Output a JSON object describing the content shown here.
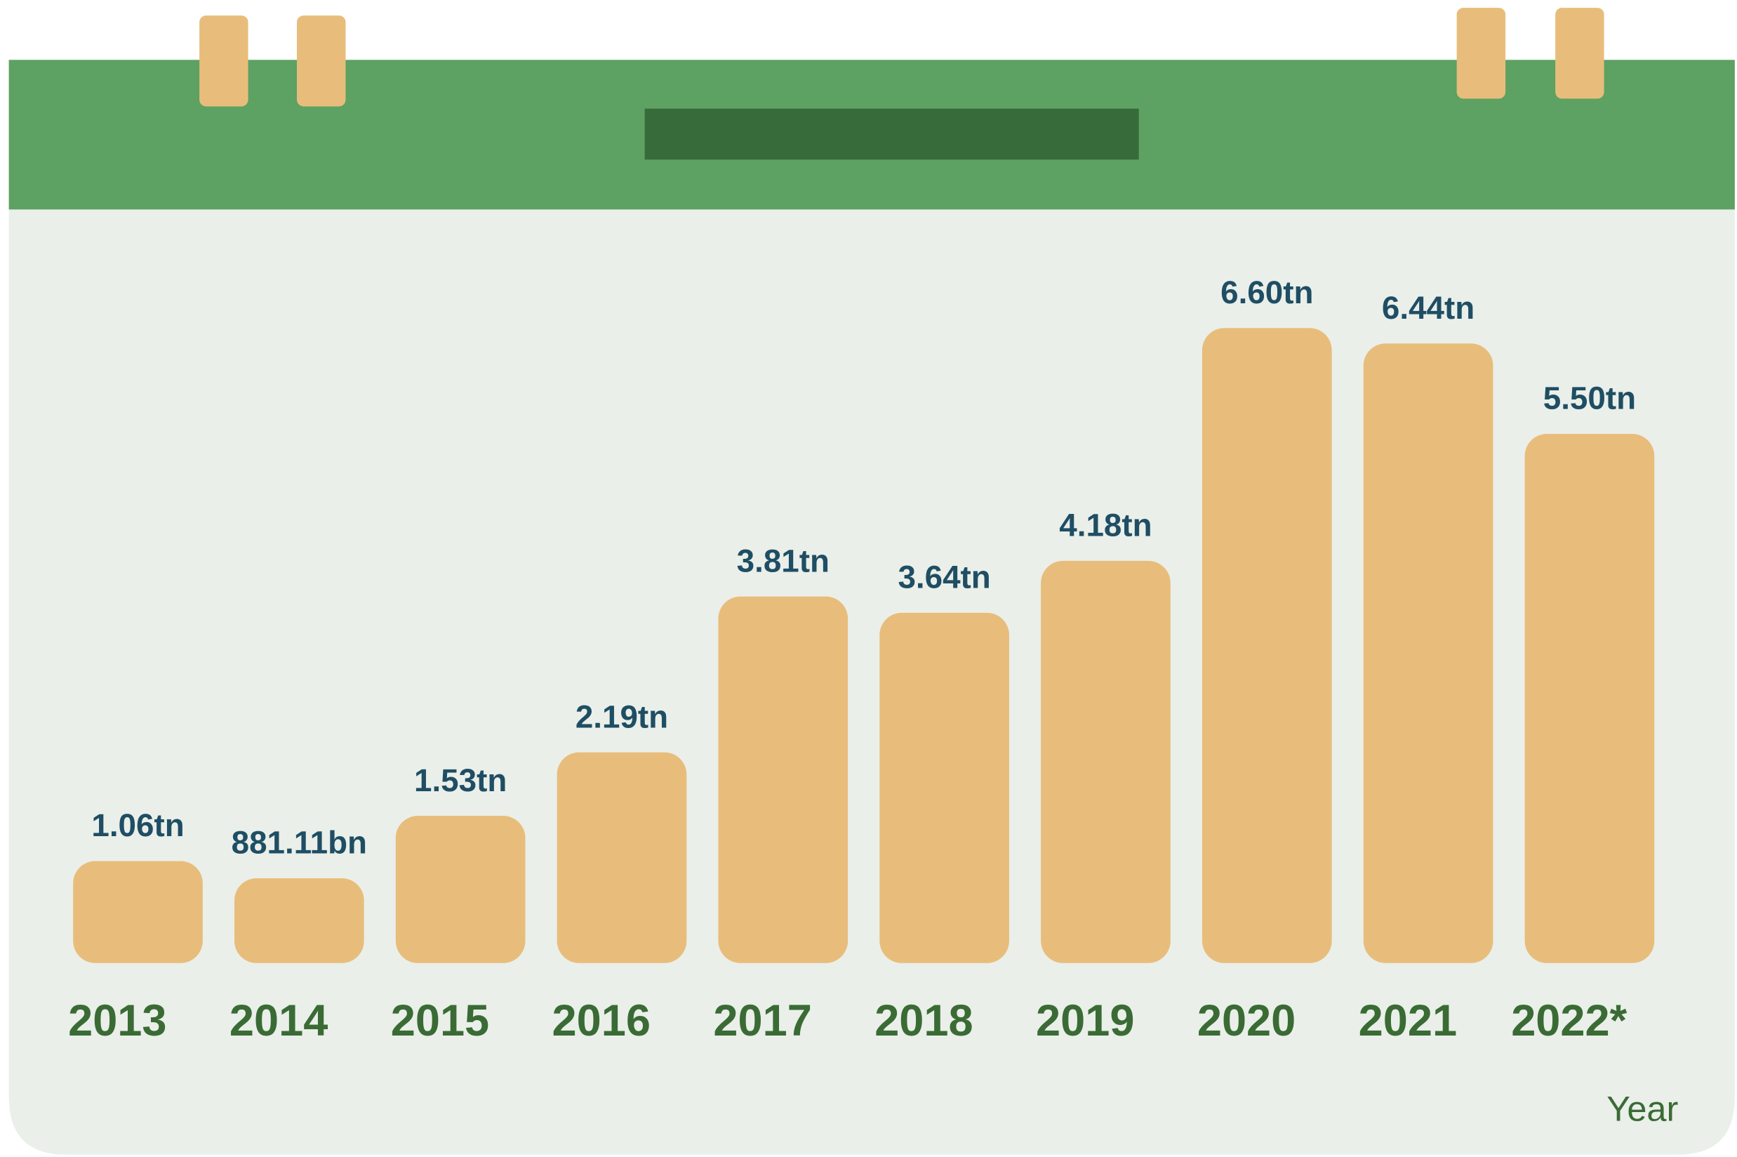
{
  "chart_data": {
    "type": "bar",
    "categories": [
      "2013",
      "2014",
      "2015",
      "2016",
      "2017",
      "2018",
      "2019",
      "2020",
      "2021",
      "2022*"
    ],
    "values": [
      1.06,
      0.88111,
      1.53,
      2.19,
      3.81,
      3.64,
      4.18,
      6.6,
      6.44,
      5.5
    ],
    "value_labels": [
      "1.06tn",
      "881.11bn",
      "1.53tn",
      "2.19tn",
      "3.81tn",
      "3.64tn",
      "4.18tn",
      "6.60tn",
      "6.44tn",
      "5.50tn"
    ],
    "color": "#e8bd7b",
    "x_label": "Year"
  }
}
